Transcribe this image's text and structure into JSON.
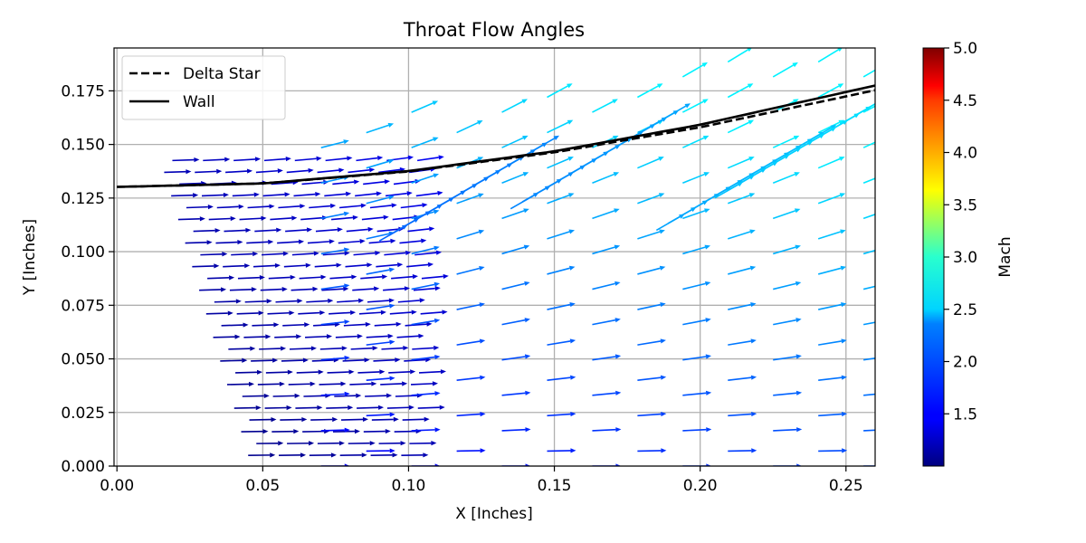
{
  "chart_data": {
    "type": "quiver",
    "title": "Throat Flow Angles",
    "xlabel": "X [Inches]",
    "ylabel": "Y [Inches]",
    "xlim": [
      -0.001,
      0.26
    ],
    "ylim": [
      0.0,
      0.195
    ],
    "x_ticks": [
      "0.00",
      "0.05",
      "0.10",
      "0.15",
      "0.20",
      "0.25"
    ],
    "y_ticks": [
      "0.000",
      "0.025",
      "0.050",
      "0.075",
      "0.100",
      "0.125",
      "0.150",
      "0.175"
    ],
    "grid": true,
    "legend": {
      "position": "top-left",
      "entries": [
        {
          "label": "Delta Star",
          "style": "dashed",
          "color": "#000000"
        },
        {
          "label": "Wall",
          "style": "solid",
          "color": "#000000"
        }
      ]
    },
    "colorbar": {
      "label": "Mach",
      "min": 1.0,
      "max": 5.0,
      "colormap": "jet",
      "tick_values": [
        1.5,
        2.0,
        2.5,
        3.0,
        3.5,
        4.0,
        4.5,
        5.0
      ],
      "tick_labels": [
        "1.5",
        "2.0",
        "2.5",
        "3.0",
        "3.5",
        "4.0",
        "4.5",
        "5.0"
      ]
    },
    "series": [
      {
        "name": "Delta Star",
        "x": [
          0.0,
          0.05,
          0.1,
          0.15,
          0.2,
          0.26
        ],
        "y": [
          0.1302,
          0.1318,
          0.1374,
          0.1463,
          0.158,
          0.1753
        ]
      },
      {
        "name": "Wall",
        "x": [
          0.0,
          0.05,
          0.1,
          0.15,
          0.2,
          0.26
        ],
        "y": [
          0.1302,
          0.1318,
          0.1376,
          0.1468,
          0.1592,
          0.1775
        ]
      }
    ],
    "field": {
      "description": "velocity direction arrows colored by Mach number",
      "mach_range": [
        1.0,
        2.5
      ],
      "flow_angle_range_deg": [
        0,
        32
      ]
    }
  }
}
